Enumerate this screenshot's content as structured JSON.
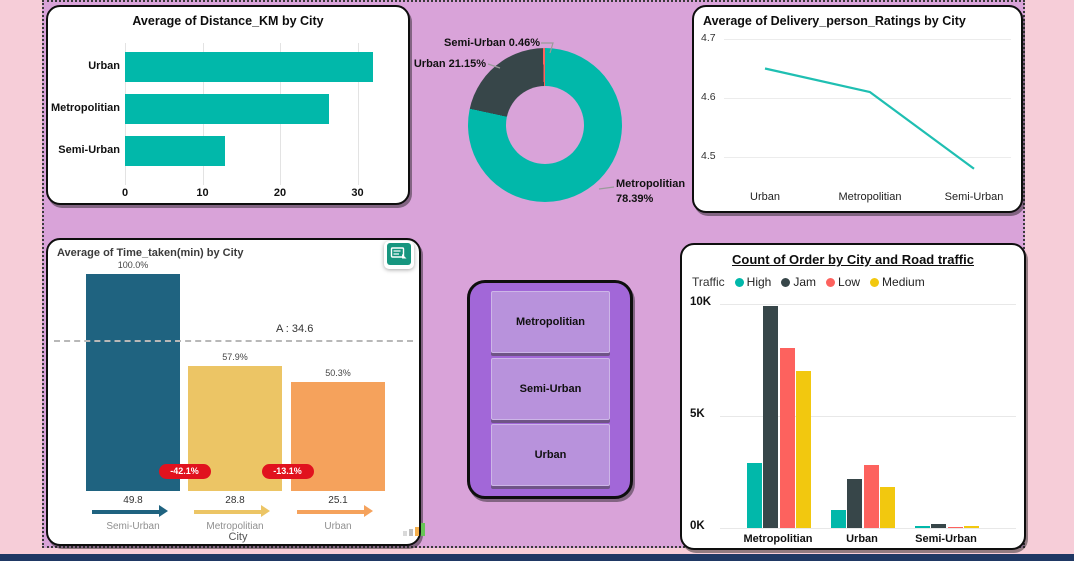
{
  "page": {
    "background": "#F6CDD8",
    "canvas_background": "#D9A3D9",
    "bottom_bar_color": "#1F3864"
  },
  "slicer": {
    "items": [
      "Metropolitian",
      "Semi-Urban",
      "Urban"
    ]
  },
  "icons": {
    "comment_icon": "comment-note-icon",
    "mini_chart_icon": "mini-bar-chart-icon"
  },
  "chart_data": [
    {
      "id": "distance",
      "type": "bar",
      "orientation": "horizontal",
      "title": "Average of Distance_KM by City",
      "categories": [
        "Urban",
        "Metropolitian",
        "Semi-Urban"
      ],
      "values": [
        32,
        26.3,
        12.9
      ],
      "xlim": [
        0,
        35
      ],
      "x_ticks": [
        {
          "label": "0",
          "value": 0
        },
        {
          "label": "10",
          "value": 10
        },
        {
          "label": "20",
          "value": 20
        },
        {
          "label": "30",
          "value": 30
        }
      ],
      "bar_color": "#01B8AA",
      "grid": true
    },
    {
      "id": "city_share",
      "type": "pie",
      "donut": true,
      "labels": [
        "Metropolitian",
        "Urban",
        "Semi-Urban"
      ],
      "values": [
        78.39,
        21.15,
        0.46
      ],
      "colors": [
        "#01B8AA",
        "#374649",
        "#FD625E"
      ],
      "callout_metro_line1": "Metropolitian",
      "callout_metro_line2": "78.39%",
      "callout_urban": "Urban 21.15%",
      "callout_semi_urban": "Semi-Urban 0.46%"
    },
    {
      "id": "ratings",
      "type": "line",
      "title": "Average of Delivery_person_Ratings by City",
      "categories": [
        "Urban",
        "Metropolitian",
        "Semi-Urban"
      ],
      "values": [
        4.65,
        4.61,
        4.48
      ],
      "ylim": [
        4.45,
        4.72
      ],
      "y_ticks": [
        {
          "label": "4.7",
          "value": 4.7
        },
        {
          "label": "4.6",
          "value": 4.6
        },
        {
          "label": "4.5",
          "value": 4.5
        }
      ],
      "line_color": "#1FBFB2",
      "grid": true
    },
    {
      "id": "time_taken",
      "type": "bar",
      "title": "Average of Time_taken(min) by City",
      "xlabel": "City",
      "categories": [
        "Semi-Urban",
        "Metropolitian",
        "Urban"
      ],
      "values": [
        49.8,
        28.8,
        25.1
      ],
      "value_labels": [
        "49.8",
        "28.8",
        "25.1"
      ],
      "percent_labels": [
        "100.0%",
        "57.9%",
        "50.3%"
      ],
      "variance_badges": [
        "-42.1%",
        "-13.1%"
      ],
      "avg_line": {
        "label": "A : 34.6",
        "value": 34.6
      },
      "bar_colors": [
        "#1F6380",
        "#ECC565",
        "#F5A25C"
      ],
      "badge_color": "#E1121E"
    },
    {
      "id": "order_traffic",
      "type": "bar",
      "grouped": true,
      "title": "Count of Order by City and Road traffic",
      "legend_title": "Traffic",
      "legend_position": "top",
      "categories": [
        "Metropolitian",
        "Urban",
        "Semi-Urban"
      ],
      "series": [
        {
          "name": "High",
          "color": "#01B8AA",
          "values": [
            2.9,
            0.8,
            0.09
          ]
        },
        {
          "name": "Jam",
          "color": "#374649",
          "values": [
            9.9,
            2.2,
            0.2
          ]
        },
        {
          "name": "Low",
          "color": "#FD625E",
          "values": [
            8.05,
            2.8,
            0.02
          ]
        },
        {
          "name": "Medium",
          "color": "#F2C80F",
          "values": [
            7.0,
            1.85,
            0.09
          ]
        }
      ],
      "unit": "K",
      "ylim": [
        0,
        10.7
      ],
      "y_ticks": [
        {
          "label": "10K",
          "value": 10
        },
        {
          "label": "5K",
          "value": 5
        },
        {
          "label": "0K",
          "value": 0
        }
      ],
      "grid": true
    }
  ]
}
